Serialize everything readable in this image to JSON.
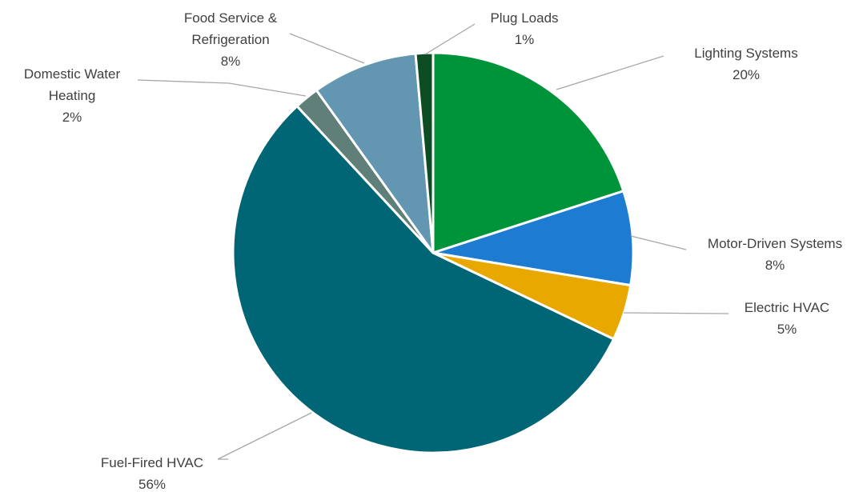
{
  "chart_data": {
    "type": "pie",
    "title": "",
    "start_angle_deg": 0,
    "direction": "clockwise",
    "slices": [
      {
        "label_lines": [
          "Lighting Systems"
        ],
        "value_label": "20%",
        "value": 20.0,
        "color": "#00943a"
      },
      {
        "label_lines": [
          "Motor-Driven Systems"
        ],
        "value_label": "8%",
        "value": 7.6,
        "color": "#1e7bd2"
      },
      {
        "label_lines": [
          "Electric HVAC"
        ],
        "value_label": "5%",
        "value": 4.5,
        "color": "#e9a800"
      },
      {
        "label_lines": [
          "Fuel-Fired HVAC"
        ],
        "value_label": "56%",
        "value": 56.0,
        "color": "#006575"
      },
      {
        "label_lines": [
          "Domestic Water",
          "Heating"
        ],
        "value_label": "2%",
        "value": 2.0,
        "color": "#5f7f78"
      },
      {
        "label_lines": [
          "Food Service &",
          "Refrigeration"
        ],
        "value_label": "8%",
        "value": 8.5,
        "color": "#6396b0"
      },
      {
        "label_lines": [
          "Plug Loads"
        ],
        "value_label": "1%",
        "value": 1.4,
        "color": "#0e4d24"
      }
    ],
    "legend": "none",
    "data_labels": "outside-with-leader-lines"
  }
}
